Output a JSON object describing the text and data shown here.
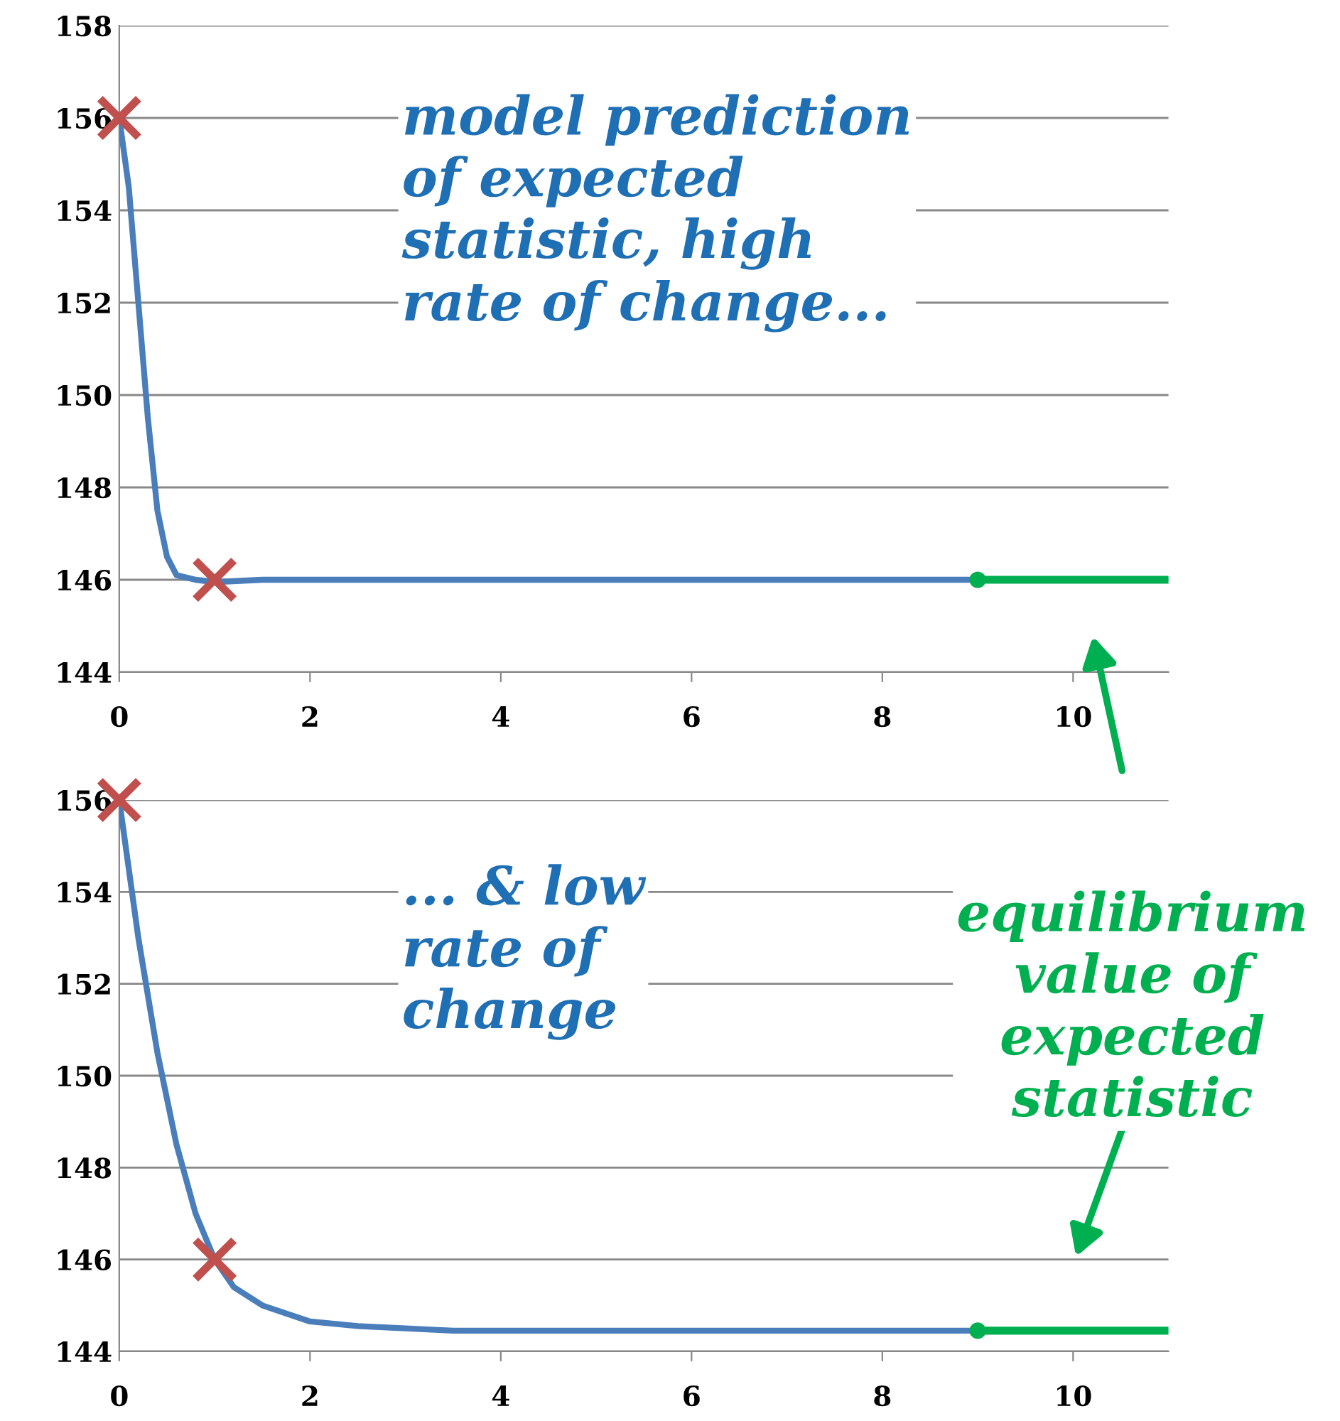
{
  "chart_data": [
    {
      "type": "line",
      "xlim": [
        0,
        11
      ],
      "xticks": [
        0,
        2,
        4,
        6,
        8,
        10
      ],
      "ylim": [
        144,
        158
      ],
      "yticks": [
        144,
        146,
        148,
        150,
        152,
        154,
        156,
        158
      ],
      "grid": "y",
      "line_style": "solid",
      "annotations": [
        "model prediction\nof expected\nstatistic, high\nrate of change..."
      ],
      "series": [
        {
          "color": "#4a7ebb",
          "marker": "none",
          "x": [
            0,
            0.1,
            0.2,
            0.3,
            0.4,
            0.5,
            0.6,
            0.8,
            1,
            1.5,
            9
          ],
          "values": [
            156,
            154.5,
            152,
            149.5,
            147.5,
            146.5,
            146.1,
            146,
            145.95,
            146,
            146
          ]
        },
        {
          "color": "#00b050",
          "marker": "none",
          "x": [
            9,
            11
          ],
          "values": [
            146,
            146
          ]
        },
        {
          "type": "scatter",
          "color": "#00b050",
          "marker": "circle",
          "x": [
            9
          ],
          "values": [
            146
          ]
        },
        {
          "type": "scatter",
          "color": "#c0504d",
          "marker": "cross",
          "x": [
            0,
            1
          ],
          "values": [
            156,
            146
          ]
        }
      ]
    },
    {
      "type": "line",
      "xlim": [
        0,
        11
      ],
      "xticks": [
        0,
        2,
        4,
        6,
        8,
        10
      ],
      "ylim": [
        144,
        156
      ],
      "yticks": [
        144,
        146,
        148,
        150,
        152,
        154,
        156
      ],
      "grid": "y",
      "line_style": "solid",
      "annotations": [
        "... & low\nrate of\nchange",
        "equilibrium\nvalue of\nexpected\nstatistic"
      ],
      "series": [
        {
          "color": "#4a7ebb",
          "marker": "none",
          "x": [
            0,
            0.2,
            0.4,
            0.6,
            0.8,
            1,
            1.2,
            1.5,
            2,
            2.5,
            3,
            3.5,
            9
          ],
          "values": [
            156,
            153,
            150.5,
            148.5,
            147,
            146,
            145.4,
            145,
            144.65,
            144.55,
            144.5,
            144.45,
            144.45
          ]
        },
        {
          "color": "#00b050",
          "marker": "none",
          "x": [
            9,
            11
          ],
          "values": [
            144.45,
            144.45
          ]
        },
        {
          "type": "scatter",
          "color": "#00b050",
          "marker": "circle",
          "x": [
            9
          ],
          "values": [
            144.45
          ]
        },
        {
          "type": "scatter",
          "color": "#c0504d",
          "marker": "cross",
          "x": [
            0,
            1
          ],
          "values": [
            156,
            146
          ]
        }
      ]
    }
  ]
}
